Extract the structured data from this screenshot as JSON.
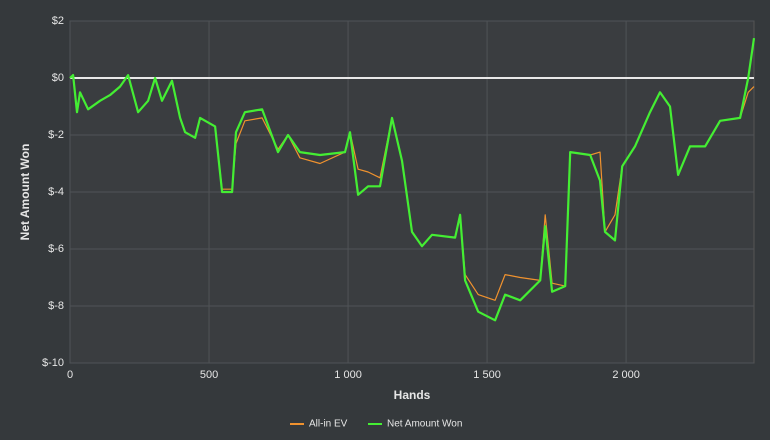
{
  "chart_data": {
    "type": "line",
    "x_label": "Hands",
    "y_label": "Net Amount Won",
    "x": [
      0,
      11,
      25,
      36,
      65,
      108,
      144,
      180,
      209,
      245,
      281,
      306,
      331,
      367,
      396,
      414,
      450,
      468,
      522,
      547,
      583,
      597,
      629,
      691,
      748,
      784,
      827,
      899,
      989,
      1007,
      1036,
      1072,
      1115,
      1158,
      1194,
      1230,
      1266,
      1302,
      1385,
      1403,
      1421,
      1468,
      1529,
      1565,
      1619,
      1691,
      1709,
      1734,
      1781,
      1799,
      1871,
      1906,
      1924,
      1960,
      1986,
      2032,
      2086,
      2122,
      2158,
      2187,
      2230,
      2284,
      2338,
      2410,
      2439,
      2460
    ],
    "series": [
      {
        "name": "All-in EV",
        "color": "#f0922e",
        "values": [
          0,
          0.1,
          -1.2,
          -0.5,
          -1.1,
          -0.8,
          -0.6,
          -0.3,
          0.1,
          -1.2,
          -0.8,
          0,
          -0.8,
          -0.1,
          -1.4,
          -1.9,
          -2.1,
          -1.4,
          -1.7,
          -3.9,
          -3.9,
          -2.3,
          -1.5,
          -1.4,
          -2.5,
          -2.0,
          -2.8,
          -3.0,
          -2.6,
          -1.9,
          -3.2,
          -3.3,
          -3.5,
          -1.4,
          -2.9,
          -5.4,
          -5.9,
          -5.5,
          -5.6,
          -4.8,
          -6.9,
          -7.6,
          -7.8,
          -6.9,
          -7.0,
          -7.1,
          -4.8,
          -7.2,
          -7.3,
          -2.6,
          -2.7,
          -2.6,
          -5.4,
          -4.8,
          -3.1,
          -2.4,
          -1.2,
          -0.5,
          -1.0,
          -3.4,
          -2.4,
          -2.4,
          -1.5,
          -1.4,
          -0.5,
          -0.3
        ]
      },
      {
        "name": "Net Amount Won",
        "color": "#44ee33",
        "values": [
          0,
          0.1,
          -1.2,
          -0.5,
          -1.1,
          -0.8,
          -0.6,
          -0.3,
          0.1,
          -1.2,
          -0.8,
          0,
          -0.8,
          -0.1,
          -1.4,
          -1.9,
          -2.1,
          -1.4,
          -1.7,
          -4.0,
          -4.0,
          -1.9,
          -1.2,
          -1.1,
          -2.6,
          -2.0,
          -2.6,
          -2.7,
          -2.6,
          -1.9,
          -4.1,
          -3.8,
          -3.8,
          -1.4,
          -2.9,
          -5.4,
          -5.9,
          -5.5,
          -5.6,
          -4.8,
          -7.1,
          -8.2,
          -8.5,
          -7.6,
          -7.8,
          -7.1,
          -5.2,
          -7.5,
          -7.3,
          -2.6,
          -2.7,
          -3.6,
          -5.4,
          -5.7,
          -3.1,
          -2.4,
          -1.2,
          -0.5,
          -1.0,
          -3.4,
          -2.4,
          -2.4,
          -1.5,
          -1.4,
          0,
          1.4
        ]
      }
    ],
    "xlim": [
      0,
      2460
    ],
    "xticks": [
      0,
      500,
      {
        "value": 1000,
        "label": "1 000"
      },
      {
        "value": 1500,
        "label": "1 500"
      },
      {
        "value": 2000,
        "label": "2 000"
      }
    ],
    "ylim": [
      -10,
      2
    ],
    "yticks": [
      {
        "value": -10,
        "label": "$-10"
      },
      {
        "value": -8,
        "label": "$-8"
      },
      {
        "value": -6,
        "label": "$-6"
      },
      {
        "value": -4,
        "label": "$-4"
      },
      {
        "value": -2,
        "label": "$-2"
      },
      {
        "value": 0,
        "label": "$0"
      },
      {
        "value": 2,
        "label": "$2"
      }
    ],
    "grid": true,
    "legend": "bottom"
  }
}
